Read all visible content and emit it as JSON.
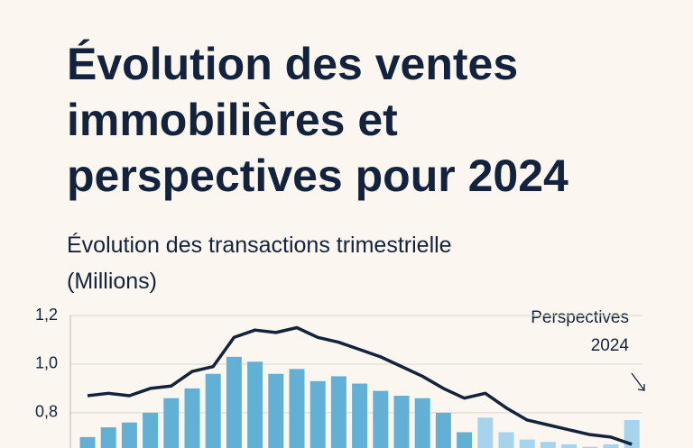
{
  "chart_data": {
    "type": "bar-line",
    "title": [
      "Évolution des ventes",
      "immobilières et",
      "perspectives pour 2024"
    ],
    "subtitle": [
      "Évolution des transactions trimestrielle",
      "(Millions)"
    ],
    "annotation": [
      "Perspectives",
      "2024"
    ],
    "ylim": [
      0.655,
      1.2
    ],
    "yticks": [
      {
        "value": 0.8,
        "label": "0,8"
      },
      {
        "value": 1.0,
        "label": "1,0"
      },
      {
        "value": 1.2,
        "label": "1,2"
      }
    ],
    "grid": true,
    "bars": {
      "values": [
        0.7,
        0.74,
        0.76,
        0.8,
        0.86,
        0.9,
        0.96,
        1.03,
        1.01,
        0.96,
        0.98,
        0.93,
        0.95,
        0.92,
        0.89,
        0.87,
        0.86,
        0.8,
        0.72,
        0.78,
        0.72,
        0.69,
        0.68,
        0.67,
        0.66,
        0.67,
        0.77
      ],
      "colors": [
        "#62b0d6",
        "#62b0d6",
        "#62b0d6",
        "#62b0d6",
        "#62b0d6",
        "#62b0d6",
        "#62b0d6",
        "#62b0d6",
        "#62b0d6",
        "#62b0d6",
        "#62b0d6",
        "#62b0d6",
        "#62b0d6",
        "#62b0d6",
        "#62b0d6",
        "#62b0d6",
        "#62b0d6",
        "#62b0d6",
        "#62b0d6",
        "#a6d4ec",
        "#a6d4ec",
        "#a6d4ec",
        "#a6d4ec",
        "#a6d4ec",
        "#a6d4ec",
        "#a6d4ec",
        "#a6d4ec"
      ]
    },
    "line": {
      "color": "#13233d",
      "values": [
        0.87,
        0.88,
        0.87,
        0.9,
        0.91,
        0.97,
        0.99,
        1.11,
        1.14,
        1.13,
        1.15,
        1.11,
        1.09,
        1.06,
        1.03,
        0.99,
        0.95,
        0.9,
        0.86,
        0.88,
        0.82,
        0.77,
        0.75,
        0.73,
        0.71,
        0.7,
        0.67
      ]
    }
  }
}
